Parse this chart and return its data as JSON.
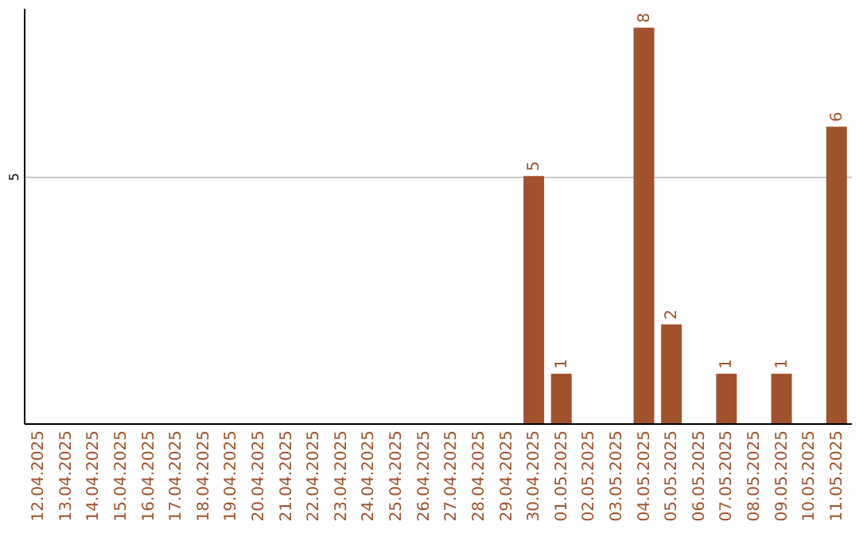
{
  "chart_data": {
    "type": "bar",
    "categories": [
      "12.04.2025",
      "13.04.2025",
      "14.04.2025",
      "15.04.2025",
      "16.04.2025",
      "17.04.2025",
      "18.04.2025",
      "19.04.2025",
      "20.04.2025",
      "21.04.2025",
      "22.04.2025",
      "23.04.2025",
      "24.04.2025",
      "25.04.2025",
      "26.04.2025",
      "27.04.2025",
      "28.04.2025",
      "29.04.2025",
      "30.04.2025",
      "01.05.2025",
      "02.05.2025",
      "03.05.2025",
      "04.05.2025",
      "05.05.2025",
      "06.05.2025",
      "07.05.2025",
      "08.05.2025",
      "09.05.2025",
      "10.05.2025",
      "11.05.2025"
    ],
    "values": [
      null,
      null,
      null,
      null,
      null,
      null,
      null,
      null,
      null,
      null,
      null,
      null,
      null,
      null,
      null,
      null,
      null,
      null,
      5,
      1,
      null,
      null,
      8,
      2,
      null,
      1,
      null,
      1,
      null,
      6
    ],
    "value_labels": [
      null,
      null,
      null,
      null,
      null,
      null,
      null,
      null,
      null,
      null,
      null,
      null,
      null,
      null,
      null,
      null,
      null,
      null,
      "5",
      "1",
      null,
      null,
      "8",
      "2",
      null,
      "1",
      null,
      "1",
      null,
      "6"
    ],
    "color": "#a0522d",
    "ylim": [
      0,
      8.4
    ],
    "yticks": [
      5
    ],
    "grid": "y"
  }
}
